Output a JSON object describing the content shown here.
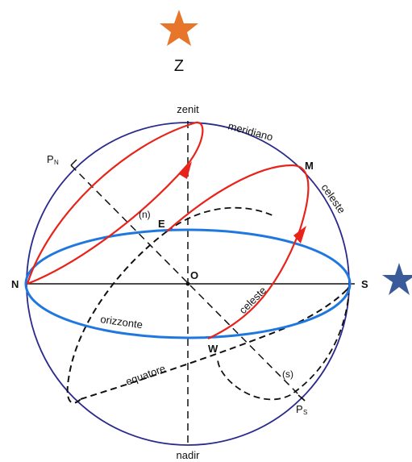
{
  "colors": {
    "sphere": "#2a2a8c",
    "horizon": "#1f78e0",
    "path": "#e8231a",
    "star_top": "#e8762a",
    "star_right": "#3b5a9a",
    "ink": "#111111"
  },
  "icons": {
    "top_star": "star-icon",
    "right_star": "star-icon"
  },
  "labels": {
    "z": "Z",
    "zenit": "zenit",
    "meridiano": "meridiano",
    "celeste_top": "celeste",
    "celeste_path": "celeste",
    "m": "M",
    "pn": "P",
    "pn_sub": "N",
    "ps": "P",
    "ps_sub": "S",
    "n_paren": "(n)",
    "s_paren": "(s)",
    "e": "E",
    "o": "O",
    "w": "W",
    "n": "N",
    "s": "S",
    "orizzonte": "orizzonte",
    "equatore": "equatore",
    "nadir": "nadir"
  }
}
